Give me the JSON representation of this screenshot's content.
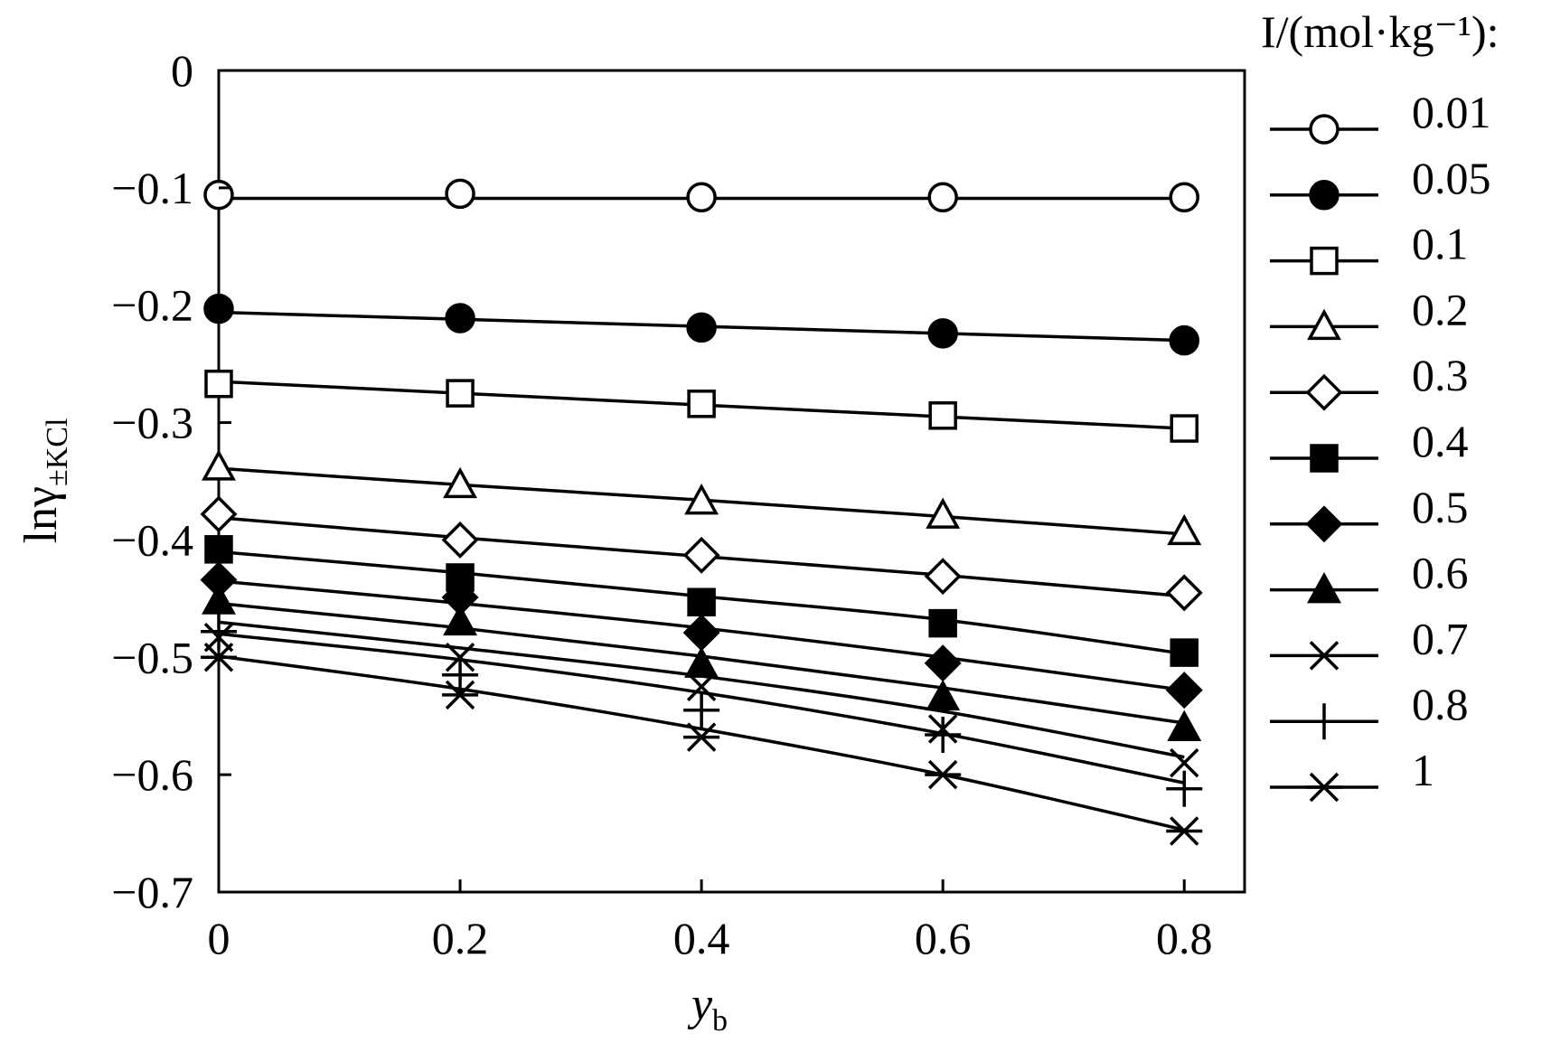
{
  "chart_data": {
    "type": "line",
    "xlabel": "y",
    "xlabel_sub": "b",
    "ylabel": "lnγ",
    "ylabel_sub": "±KCl",
    "xlim": [
      0,
      0.85
    ],
    "ylim": [
      -0.7,
      0
    ],
    "x_ticks": [
      0,
      0.2,
      0.4,
      0.6,
      0.8
    ],
    "x_tick_labels": [
      "0",
      "0.2",
      "0.4",
      "0.6",
      "0.8"
    ],
    "y_ticks": [
      0,
      -0.1,
      -0.2,
      -0.3,
      -0.4,
      -0.5,
      -0.6,
      -0.7
    ],
    "y_tick_labels": [
      "0",
      "−0.1",
      "−0.2",
      "−0.3",
      "−0.4",
      "−0.5",
      "−0.6",
      "−0.7"
    ],
    "grid": false,
    "legend_title": "I/(mol·kg⁻¹):",
    "legend_position": "right",
    "x": [
      0,
      0.2,
      0.4,
      0.6,
      0.8
    ],
    "series": [
      {
        "name": "0.01",
        "marker": "circle-open",
        "values": [
          -0.106,
          -0.105,
          -0.108,
          -0.108,
          -0.108
        ],
        "fit": [
          -0.109,
          -0.109,
          -0.109,
          -0.109,
          -0.109
        ]
      },
      {
        "name": "0.05",
        "marker": "circle-filled",
        "values": [
          -0.203,
          -0.211,
          -0.219,
          -0.224,
          -0.23
        ],
        "fit": [
          -0.206,
          -0.212,
          -0.218,
          -0.224,
          -0.23
        ]
      },
      {
        "name": "0.1",
        "marker": "square-open",
        "values": [
          -0.267,
          -0.275,
          -0.284,
          -0.294,
          -0.305
        ],
        "fit": [
          -0.265,
          -0.275,
          -0.285,
          -0.295,
          -0.305
        ]
      },
      {
        "name": "0.2",
        "marker": "triangle-open",
        "values": [
          -0.338,
          -0.353,
          -0.367,
          -0.379,
          -0.393
        ],
        "fit": [
          -0.339,
          -0.353,
          -0.366,
          -0.38,
          -0.395
        ]
      },
      {
        "name": "0.3",
        "marker": "diamond-open",
        "values": [
          -0.378,
          -0.4,
          -0.413,
          -0.431,
          -0.445
        ],
        "fit": [
          -0.381,
          -0.398,
          -0.414,
          -0.43,
          -0.448
        ]
      },
      {
        "name": "0.4",
        "marker": "square-filled",
        "values": [
          -0.408,
          -0.432,
          -0.453,
          -0.471,
          -0.496
        ],
        "fit": [
          -0.41,
          -0.428,
          -0.448,
          -0.468,
          -0.497
        ]
      },
      {
        "name": "0.5",
        "marker": "diamond-filled",
        "values": [
          -0.434,
          -0.449,
          -0.479,
          -0.505,
          -0.528
        ],
        "fit": [
          -0.435,
          -0.454,
          -0.475,
          -0.5,
          -0.528
        ]
      },
      {
        "name": "0.6",
        "marker": "triangle-filled",
        "values": [
          -0.452,
          -0.47,
          -0.506,
          -0.534,
          -0.56
        ],
        "fit": [
          -0.454,
          -0.475,
          -0.499,
          -0.526,
          -0.556
        ]
      },
      {
        "name": "0.7",
        "marker": "x",
        "values": [
          -0.483,
          -0.5,
          -0.525,
          -0.561,
          -0.59
        ],
        "fit": [
          -0.47,
          -0.492,
          -0.516,
          -0.546,
          -0.585
        ]
      },
      {
        "name": "0.8",
        "marker": "plus",
        "values": [
          -0.478,
          -0.515,
          -0.545,
          -0.566,
          -0.612
        ],
        "fit": [
          -0.48,
          -0.502,
          -0.53,
          -0.565,
          -0.607
        ]
      },
      {
        "name": "1",
        "marker": "asterisk",
        "values": [
          -0.5,
          -0.532,
          -0.568,
          -0.6,
          -0.648
        ],
        "fit": [
          -0.499,
          -0.527,
          -0.561,
          -0.6,
          -0.647
        ]
      }
    ]
  }
}
